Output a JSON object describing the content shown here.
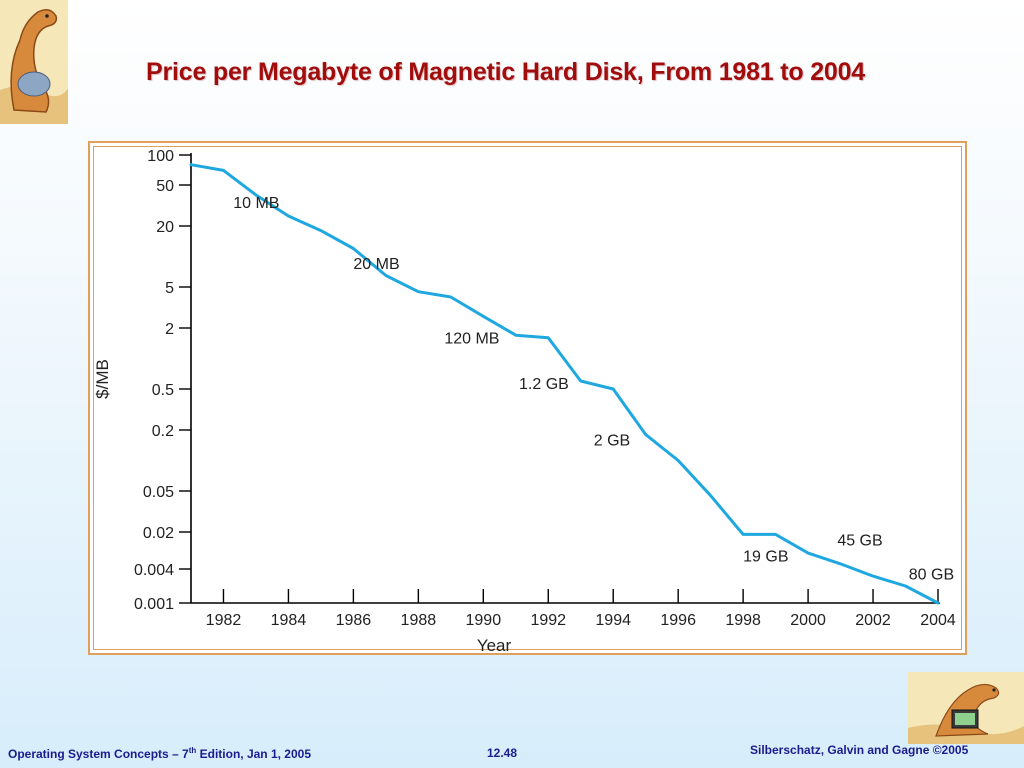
{
  "slide": {
    "title": "Price per Megabyte of Magnetic Hard Disk, From 1981 to 2004",
    "footer_left_pre": "Operating System Concepts – 7",
    "footer_left_sup": "th",
    "footer_left_post": " Edition, Jan 1, 2005",
    "footer_center": "12.48",
    "footer_right": "Silberschatz, Galvin and Gagne ©2005",
    "logo_top_icon": "dinosaur-logo-icon",
    "logo_bottom_icon": "dinosaur-laptop-icon"
  },
  "chart_data": {
    "type": "line",
    "title": "",
    "xlabel": "Year",
    "ylabel": "$/MB",
    "y_scale": "log",
    "xlim": [
      1981,
      2004
    ],
    "line_color": "#1fa8e0",
    "x_ticks": [
      1982,
      1984,
      1986,
      1988,
      1990,
      1992,
      1994,
      1996,
      1998,
      2000,
      2002,
      2004
    ],
    "y_ticks": [
      {
        "label": "100",
        "value": 100
      },
      {
        "label": "50",
        "value": 50
      },
      {
        "label": "20",
        "value": 20
      },
      {
        "label": "5",
        "value": 5
      },
      {
        "label": "2",
        "value": 2
      },
      {
        "label": "0.5",
        "value": 0.5
      },
      {
        "label": "0.2",
        "value": 0.2
      },
      {
        "label": "0.05",
        "value": 0.05
      },
      {
        "label": "0.02",
        "value": 0.02
      },
      {
        "label": "0.004",
        "value": 0.004
      },
      {
        "label": "0.001",
        "value": 0.001
      }
    ],
    "series": [
      {
        "points": [
          [
            1981,
            80
          ],
          [
            1982,
            70
          ],
          [
            1983,
            40
          ],
          [
            1984,
            25
          ],
          [
            1985,
            18
          ],
          [
            1986,
            12
          ],
          [
            1987,
            6.5
          ],
          [
            1988,
            4.5
          ],
          [
            1989,
            4
          ],
          [
            1990,
            2.6
          ],
          [
            1991,
            1.7
          ],
          [
            1992,
            1.6
          ],
          [
            1993,
            0.6
          ],
          [
            1994,
            0.5
          ],
          [
            1995,
            0.18
          ],
          [
            1996,
            0.1
          ],
          [
            1997,
            0.045
          ],
          [
            1998,
            0.018
          ],
          [
            1999,
            0.018
          ],
          [
            2000,
            0.008
          ],
          [
            2001,
            0.005
          ],
          [
            2002,
            0.003
          ],
          [
            2003,
            0.002
          ],
          [
            2004,
            0.001
          ]
        ]
      }
    ],
    "annotations": [
      {
        "text": "10 MB",
        "x": 1982.3,
        "y": 30
      },
      {
        "text": "20 MB",
        "x": 1986.0,
        "y": 7.5
      },
      {
        "text": "120 MB",
        "x": 1988.8,
        "y": 1.4
      },
      {
        "text": "1.2 GB",
        "x": 1991.1,
        "y": 0.5
      },
      {
        "text": "2 GB",
        "x": 1993.4,
        "y": 0.14
      },
      {
        "text": "19 GB",
        "x": 1998.0,
        "y": 0.0056
      },
      {
        "text": "45 GB",
        "x": 2000.9,
        "y": 0.011
      },
      {
        "text": "80 GB",
        "x": 2003.1,
        "y": 0.0026
      }
    ]
  }
}
